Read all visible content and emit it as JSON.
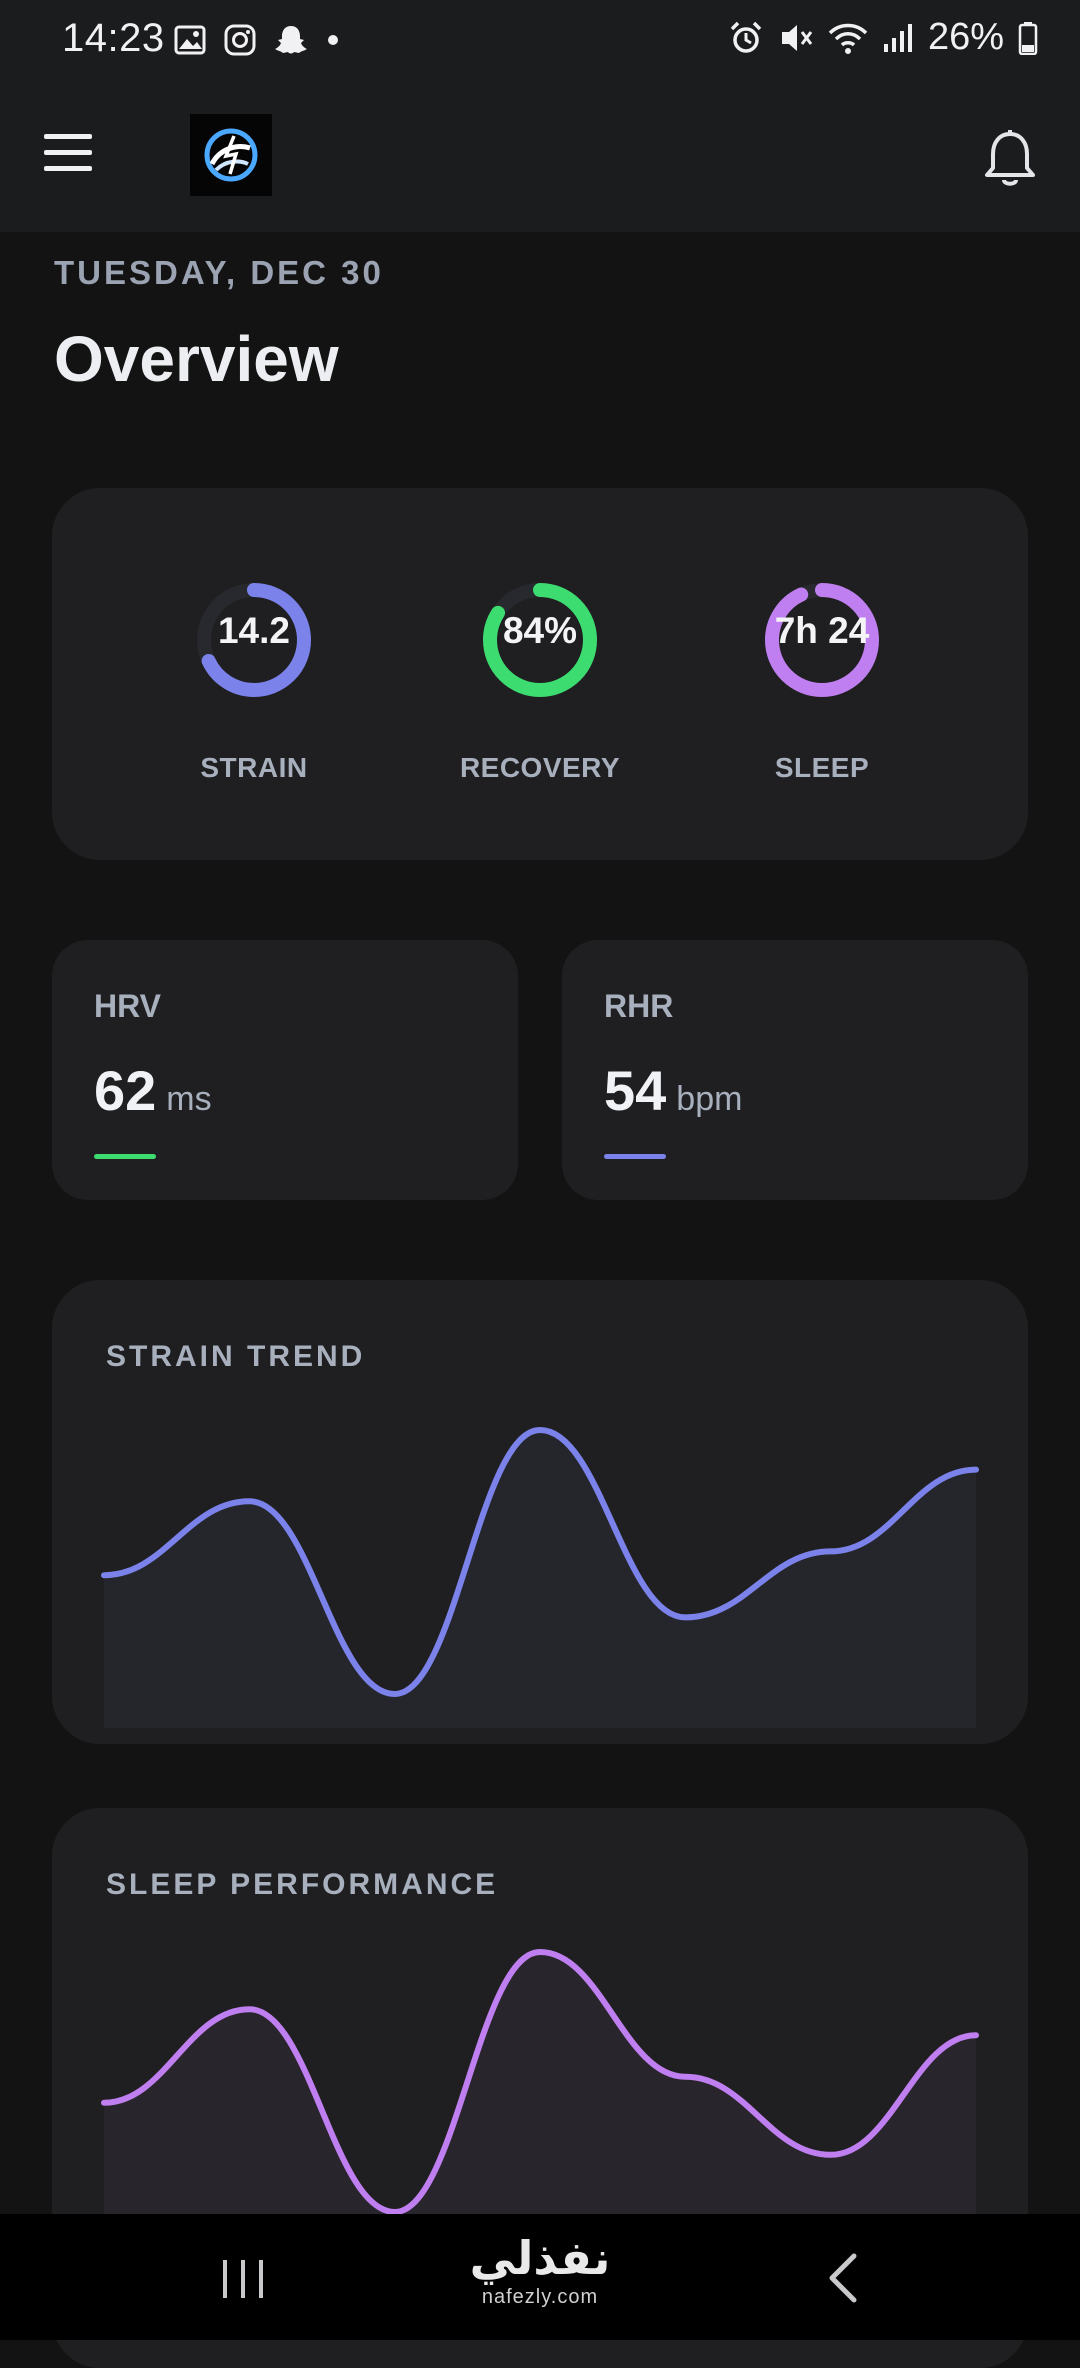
{
  "status_bar": {
    "time": "14:23",
    "battery": "26%",
    "left_icons": [
      "gallery-icon",
      "instagram-icon",
      "snapchat-icon",
      "dot-icon"
    ],
    "right_icons": [
      "alarm-icon",
      "mute-icon",
      "wifi-icon",
      "signal-icon",
      "battery-icon"
    ]
  },
  "app_bar": {
    "menu_icon": "hamburger-menu-icon",
    "logo": "app-logo",
    "notifications_icon": "bell-icon"
  },
  "header": {
    "date": "TUESDAY, DEC 30",
    "title": "Overview"
  },
  "summary": {
    "rings": [
      {
        "value": "14.2",
        "label": "STRAIN",
        "color": "#7b83eb",
        "fraction": 0.68
      },
      {
        "value": "84%",
        "label": "RECOVERY",
        "color": "#3ddc71",
        "fraction": 0.84
      },
      {
        "value": "7h 24",
        "label": "SLEEP",
        "color": "#c07ff0",
        "fraction": 0.93
      }
    ]
  },
  "metrics": {
    "hrv": {
      "label": "HRV",
      "value": "62",
      "unit": "ms",
      "color": "#3ddc71"
    },
    "rhr": {
      "label": "RHR",
      "value": "54",
      "unit": "bpm",
      "color": "#7b83eb"
    }
  },
  "trends": {
    "strain": {
      "title": "STRAIN TREND",
      "color": "#7b83eb"
    },
    "sleep": {
      "title": "SLEEP PERFORMANCE",
      "color": "#c07ff0"
    }
  },
  "chart_data": [
    {
      "type": "area",
      "title": "STRAIN TREND",
      "x": [
        0,
        1,
        2,
        3,
        4,
        5,
        6
      ],
      "values": [
        0.45,
        0.73,
        0.0,
        1.0,
        0.29,
        0.54,
        0.85
      ],
      "ylim": [
        0,
        1
      ],
      "grid": false
    },
    {
      "type": "area",
      "title": "SLEEP PERFORMANCE",
      "x": [
        0,
        1,
        2,
        3,
        4,
        5,
        6
      ],
      "values": [
        0.42,
        0.78,
        0.0,
        1.0,
        0.52,
        0.22,
        0.68
      ],
      "ylim": [
        0,
        1
      ],
      "grid": false
    }
  ],
  "nav_bar": {
    "recent_icon": "recent-apps-icon",
    "back_icon": "back-icon",
    "watermark_arabic": "نفذلي",
    "watermark_latin": "nafezly.com"
  }
}
